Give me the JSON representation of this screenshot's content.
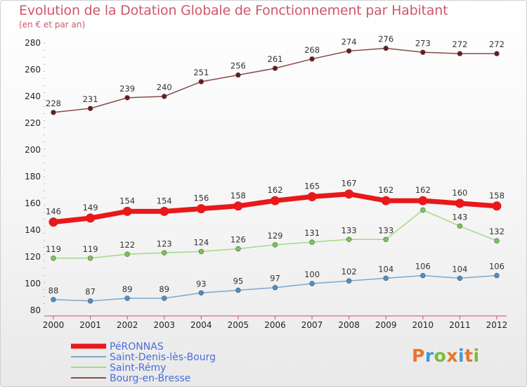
{
  "header": {
    "title": "Evolution de la Dotation Globale de Fonctionnement par Habitant",
    "subtitle": "(en € et par an)"
  },
  "logo": {
    "text": "Proxiti",
    "colors": [
      "#e8742b",
      "#3f9ad8",
      "#7bbb3c",
      "#e8742b",
      "#3f9ad8",
      "#e8742b",
      "#7bbb3c"
    ]
  },
  "chart_data": {
    "type": "line",
    "title": "Evolution de la Dotation Globale de Fonctionnement par Habitant",
    "subtitle": "(en € et par an)",
    "xlabel": "",
    "ylabel": "",
    "categories": [
      "2000",
      "2001",
      "2002",
      "2003",
      "2004",
      "2005",
      "2006",
      "2007",
      "2008",
      "2009",
      "2010",
      "2011",
      "2012"
    ],
    "ylim": [
      80,
      280
    ],
    "yticks": [
      80,
      100,
      120,
      140,
      160,
      180,
      200,
      220,
      240,
      260,
      280
    ],
    "grid": false,
    "legend_position": "bottom-left",
    "series": [
      {
        "name": "PéRONNAS",
        "color": "#e8181b",
        "marker_color": "#e8181b",
        "emphasis": "thick",
        "values": [
          146,
          149,
          154,
          154,
          156,
          158,
          162,
          165,
          167,
          162,
          162,
          160,
          158
        ]
      },
      {
        "name": "Saint-Denis-lès-Bourg",
        "color": "#7ea7cc",
        "marker_color": "#4a8fd0",
        "emphasis": "thin",
        "values": [
          88,
          87,
          89,
          89,
          93,
          95,
          97,
          100,
          102,
          104,
          106,
          104,
          106
        ]
      },
      {
        "name": "Saint-Rémy",
        "color": "#a4d985",
        "marker_color": "#78c850",
        "emphasis": "thin",
        "values": [
          119,
          119,
          122,
          123,
          124,
          126,
          129,
          131,
          133,
          133,
          155,
          143,
          132
        ],
        "labels": [
          "119",
          "119",
          "122",
          "123",
          "124",
          "126",
          "129",
          "131",
          "133",
          "133",
          "",
          "143",
          "132"
        ]
      },
      {
        "name": "Bourg-en-Bresse",
        "color": "#8a4a4a",
        "marker_color": "#6a1c1c",
        "emphasis": "thin",
        "values": [
          228,
          231,
          239,
          240,
          251,
          256,
          261,
          268,
          274,
          276,
          273,
          272,
          272
        ]
      }
    ]
  }
}
